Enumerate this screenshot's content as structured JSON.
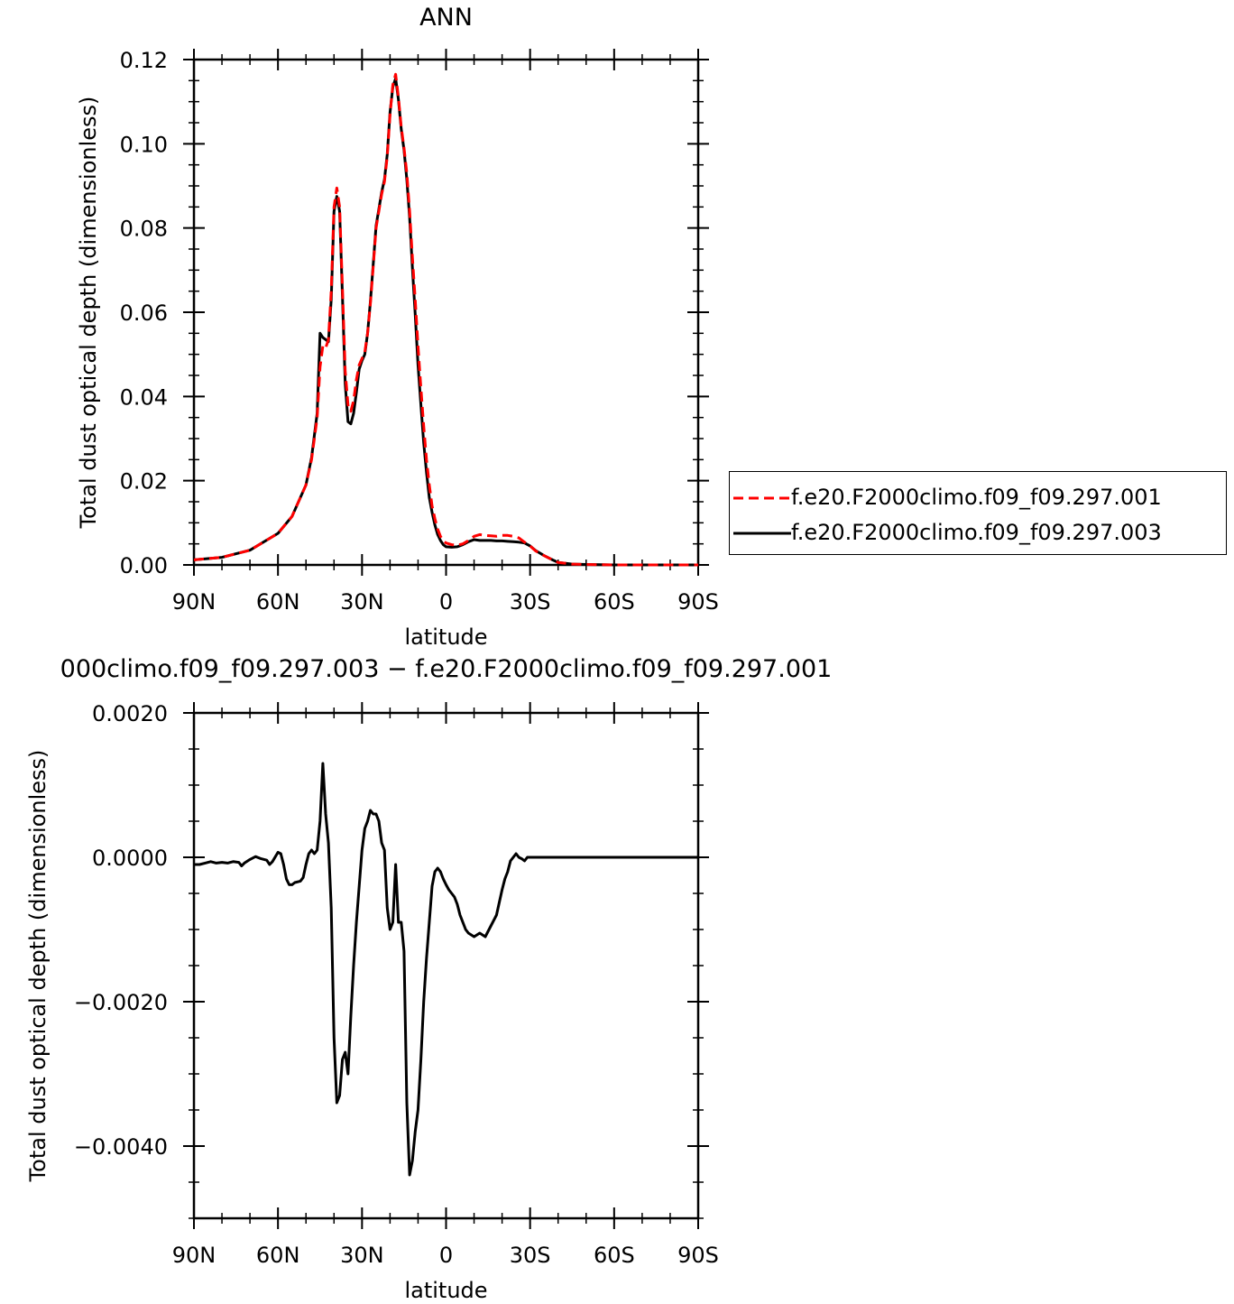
{
  "chart_data": [
    {
      "type": "line",
      "title": "ANN",
      "xlabel": "latitude",
      "ylabel": "Total dust optical depth (dimensionless)",
      "xlim": [
        90,
        -90
      ],
      "ylim": [
        0,
        0.12
      ],
      "xticks": [
        90,
        60,
        30,
        0,
        -30,
        -60,
        -90
      ],
      "xtick_labels": [
        "90N",
        "60N",
        "30N",
        "0",
        "30S",
        "60S",
        "90S"
      ],
      "yticks": [
        0,
        0.02,
        0.04,
        0.06,
        0.08,
        0.1,
        0.12
      ],
      "ytick_labels": [
        "0.00",
        "0.02",
        "0.04",
        "0.06",
        "0.08",
        "0.10",
        "0.12"
      ],
      "grid": false,
      "legend_position": "right",
      "series": [
        {
          "name": "f.e20.F2000climo.f09_f09.297.001",
          "color": "#ff0000",
          "style": "dashed",
          "x": [
            90,
            80,
            70,
            60,
            55,
            50,
            48,
            46,
            45,
            44,
            43,
            42,
            41,
            40,
            39,
            38,
            37,
            36,
            35,
            34,
            33,
            32,
            31,
            30,
            29,
            28,
            27,
            26,
            25,
            24,
            23,
            22,
            21,
            20,
            19,
            18,
            17,
            16,
            15,
            14,
            13,
            12,
            11,
            10,
            9,
            8,
            7,
            6,
            5,
            4,
            3,
            2,
            1,
            0,
            -2,
            -4,
            -6,
            -8,
            -10,
            -12,
            -14,
            -16,
            -18,
            -20,
            -22,
            -24,
            -26,
            -28,
            -30,
            -32,
            -35,
            -38,
            -40,
            -45,
            -50,
            -60,
            -70,
            -80,
            -90
          ],
          "y": [
            0.0012,
            0.0018,
            0.0035,
            0.0075,
            0.0115,
            0.019,
            0.025,
            0.035,
            0.047,
            0.052,
            0.0515,
            0.0535,
            0.065,
            0.085,
            0.0895,
            0.085,
            0.066,
            0.046,
            0.038,
            0.0365,
            0.039,
            0.044,
            0.0475,
            0.049,
            0.0505,
            0.055,
            0.062,
            0.071,
            0.08,
            0.084,
            0.088,
            0.091,
            0.097,
            0.107,
            0.114,
            0.1165,
            0.111,
            0.104,
            0.099,
            0.093,
            0.084,
            0.073,
            0.063,
            0.052,
            0.042,
            0.033,
            0.025,
            0.019,
            0.014,
            0.011,
            0.0085,
            0.0068,
            0.0057,
            0.0052,
            0.0048,
            0.0047,
            0.005,
            0.0058,
            0.0068,
            0.0072,
            0.007,
            0.0069,
            0.0068,
            0.007,
            0.007,
            0.0068,
            0.0064,
            0.0054,
            0.0045,
            0.0033,
            0.0022,
            0.0012,
            0.0006,
            0.0002,
            0.0001,
            0.0,
            0.0,
            0.0,
            0.0
          ]
        },
        {
          "name": "f.e20.F2000climo.f09_f09.297.003",
          "color": "#000000",
          "style": "solid",
          "x": [
            90,
            80,
            70,
            60,
            55,
            50,
            48,
            46,
            45,
            44,
            43,
            42,
            41,
            40,
            39,
            38,
            37,
            36,
            35,
            34,
            33,
            32,
            31,
            30,
            29,
            28,
            27,
            26,
            25,
            24,
            23,
            22,
            21,
            20,
            19,
            18,
            17,
            16,
            15,
            14,
            13,
            12,
            11,
            10,
            9,
            8,
            7,
            6,
            5,
            4,
            3,
            2,
            1,
            0,
            -2,
            -4,
            -6,
            -8,
            -10,
            -12,
            -14,
            -16,
            -18,
            -20,
            -22,
            -24,
            -26,
            -28,
            -30,
            -32,
            -35,
            -38,
            -40,
            -45,
            -50,
            -60,
            -70,
            -80,
            -90
          ],
          "y": [
            0.0012,
            0.0018,
            0.0035,
            0.0075,
            0.0115,
            0.019,
            0.0255,
            0.036,
            0.055,
            0.054,
            0.0535,
            0.053,
            0.063,
            0.084,
            0.0875,
            0.084,
            0.064,
            0.043,
            0.034,
            0.0335,
            0.036,
            0.041,
            0.0465,
            0.0485,
            0.05,
            0.055,
            0.0625,
            0.0715,
            0.0805,
            0.0845,
            0.0885,
            0.0915,
            0.0975,
            0.1075,
            0.1135,
            0.1155,
            0.1105,
            0.1035,
            0.0985,
            0.0915,
            0.0825,
            0.0705,
            0.0595,
            0.0475,
            0.038,
            0.029,
            0.022,
            0.016,
            0.0125,
            0.0095,
            0.0072,
            0.0058,
            0.0048,
            0.0043,
            0.0042,
            0.0043,
            0.0048,
            0.0055,
            0.006,
            0.0058,
            0.0058,
            0.0058,
            0.0057,
            0.0057,
            0.0056,
            0.0055,
            0.0054,
            0.0052,
            0.0045,
            0.0034,
            0.0022,
            0.0012,
            0.0006,
            0.0002,
            0.0001,
            0.0,
            0.0,
            0.0,
            0.0
          ]
        }
      ]
    },
    {
      "type": "line",
      "title": "000climo.f09_f09.297.003 − f.e20.F2000climo.f09_f09.297.001",
      "xlabel": "latitude",
      "ylabel": "Total dust optical depth (dimensionless)",
      "xlim": [
        90,
        -90
      ],
      "ylim": [
        -0.005,
        0.002
      ],
      "xticks": [
        90,
        60,
        30,
        0,
        -30,
        -60,
        -90
      ],
      "xtick_labels": [
        "90N",
        "60N",
        "30N",
        "0",
        "30S",
        "60S",
        "90S"
      ],
      "yticks": [
        0.002,
        0,
        -0.002,
        -0.004
      ],
      "ytick_labels": [
        "0.0020",
        "0.0000",
        "−0.0020",
        "−0.0040"
      ],
      "grid": false,
      "series": [
        {
          "color": "#000000",
          "style": "solid",
          "x": [
            90,
            88,
            86,
            84,
            82,
            80,
            78,
            76,
            74,
            73,
            72,
            70,
            68,
            66,
            64,
            63,
            62,
            60,
            59,
            58,
            57,
            56,
            55,
            54,
            52,
            51,
            50,
            49,
            48,
            47,
            46,
            45,
            44,
            43,
            42,
            41,
            40,
            39,
            38,
            37,
            36,
            35,
            34,
            33,
            32,
            31,
            30,
            29,
            28,
            27,
            26,
            25,
            24,
            23,
            22,
            21,
            20,
            19,
            18,
            17,
            16,
            15,
            14,
            13,
            12,
            11,
            10,
            9,
            8,
            7,
            6,
            5,
            4,
            3,
            2,
            1,
            0,
            -1,
            -2,
            -3,
            -4,
            -5,
            -6,
            -7,
            -8,
            -10,
            -12,
            -14,
            -16,
            -18,
            -20,
            -21,
            -22,
            -23,
            -24,
            -25,
            -26,
            -27,
            -28,
            -29,
            -30,
            -32,
            -34,
            -35,
            -37,
            -40,
            -43,
            -45,
            -47,
            -50,
            -55,
            -60,
            -70,
            -80,
            -90
          ],
          "y": [
            -0.0001,
            -0.0001,
            -8e-05,
            -6e-05,
            -8e-05,
            -7e-05,
            -8e-05,
            -6e-05,
            -7e-05,
            -0.00012,
            -8e-05,
            -3e-05,
            1e-05,
            -2e-05,
            -4e-05,
            -0.0001,
            -6e-05,
            7e-05,
            5e-05,
            -0.0001,
            -0.0003,
            -0.00038,
            -0.00038,
            -0.00035,
            -0.00033,
            -0.00028,
            -0.0001,
            5e-05,
            0.0001,
            5e-05,
            0.0001,
            0.0005,
            0.0013,
            0.0006,
            0.0002,
            -0.0007,
            -0.0025,
            -0.0034,
            -0.0033,
            -0.0028,
            -0.0027,
            -0.003,
            -0.0022,
            -0.0015,
            -0.0009,
            -0.0004,
            0.0001,
            0.0004,
            0.0005,
            0.00065,
            0.0006,
            0.0006,
            0.0005,
            0.0002,
            0.0001,
            -0.0007,
            -0.001,
            -0.0009,
            -0.0001,
            -0.0009,
            -0.0009,
            -0.0013,
            -0.0034,
            -0.0044,
            -0.0042,
            -0.0038,
            -0.0035,
            -0.0028,
            -0.002,
            -0.0014,
            -0.0009,
            -0.0004,
            -0.0002,
            -0.00015,
            -0.0002,
            -0.0003,
            -0.00038,
            -0.00045,
            -0.0005,
            -0.00055,
            -0.00065,
            -0.0008,
            -0.0009,
            -0.001,
            -0.00105,
            -0.0011,
            -0.00105,
            -0.0011,
            -0.00095,
            -0.0008,
            -0.00045,
            -0.0003,
            -0.0002,
            -5e-05,
            0.0,
            5e-05,
            0.0,
            -2e-05,
            -5e-05,
            0.0,
            0.0,
            0.0,
            0.0,
            0.0,
            0.0,
            0.0,
            0.0,
            0.0,
            0.0,
            0.0,
            0.0,
            0.0,
            0.0,
            0.0,
            0.0
          ]
        }
      ]
    }
  ]
}
